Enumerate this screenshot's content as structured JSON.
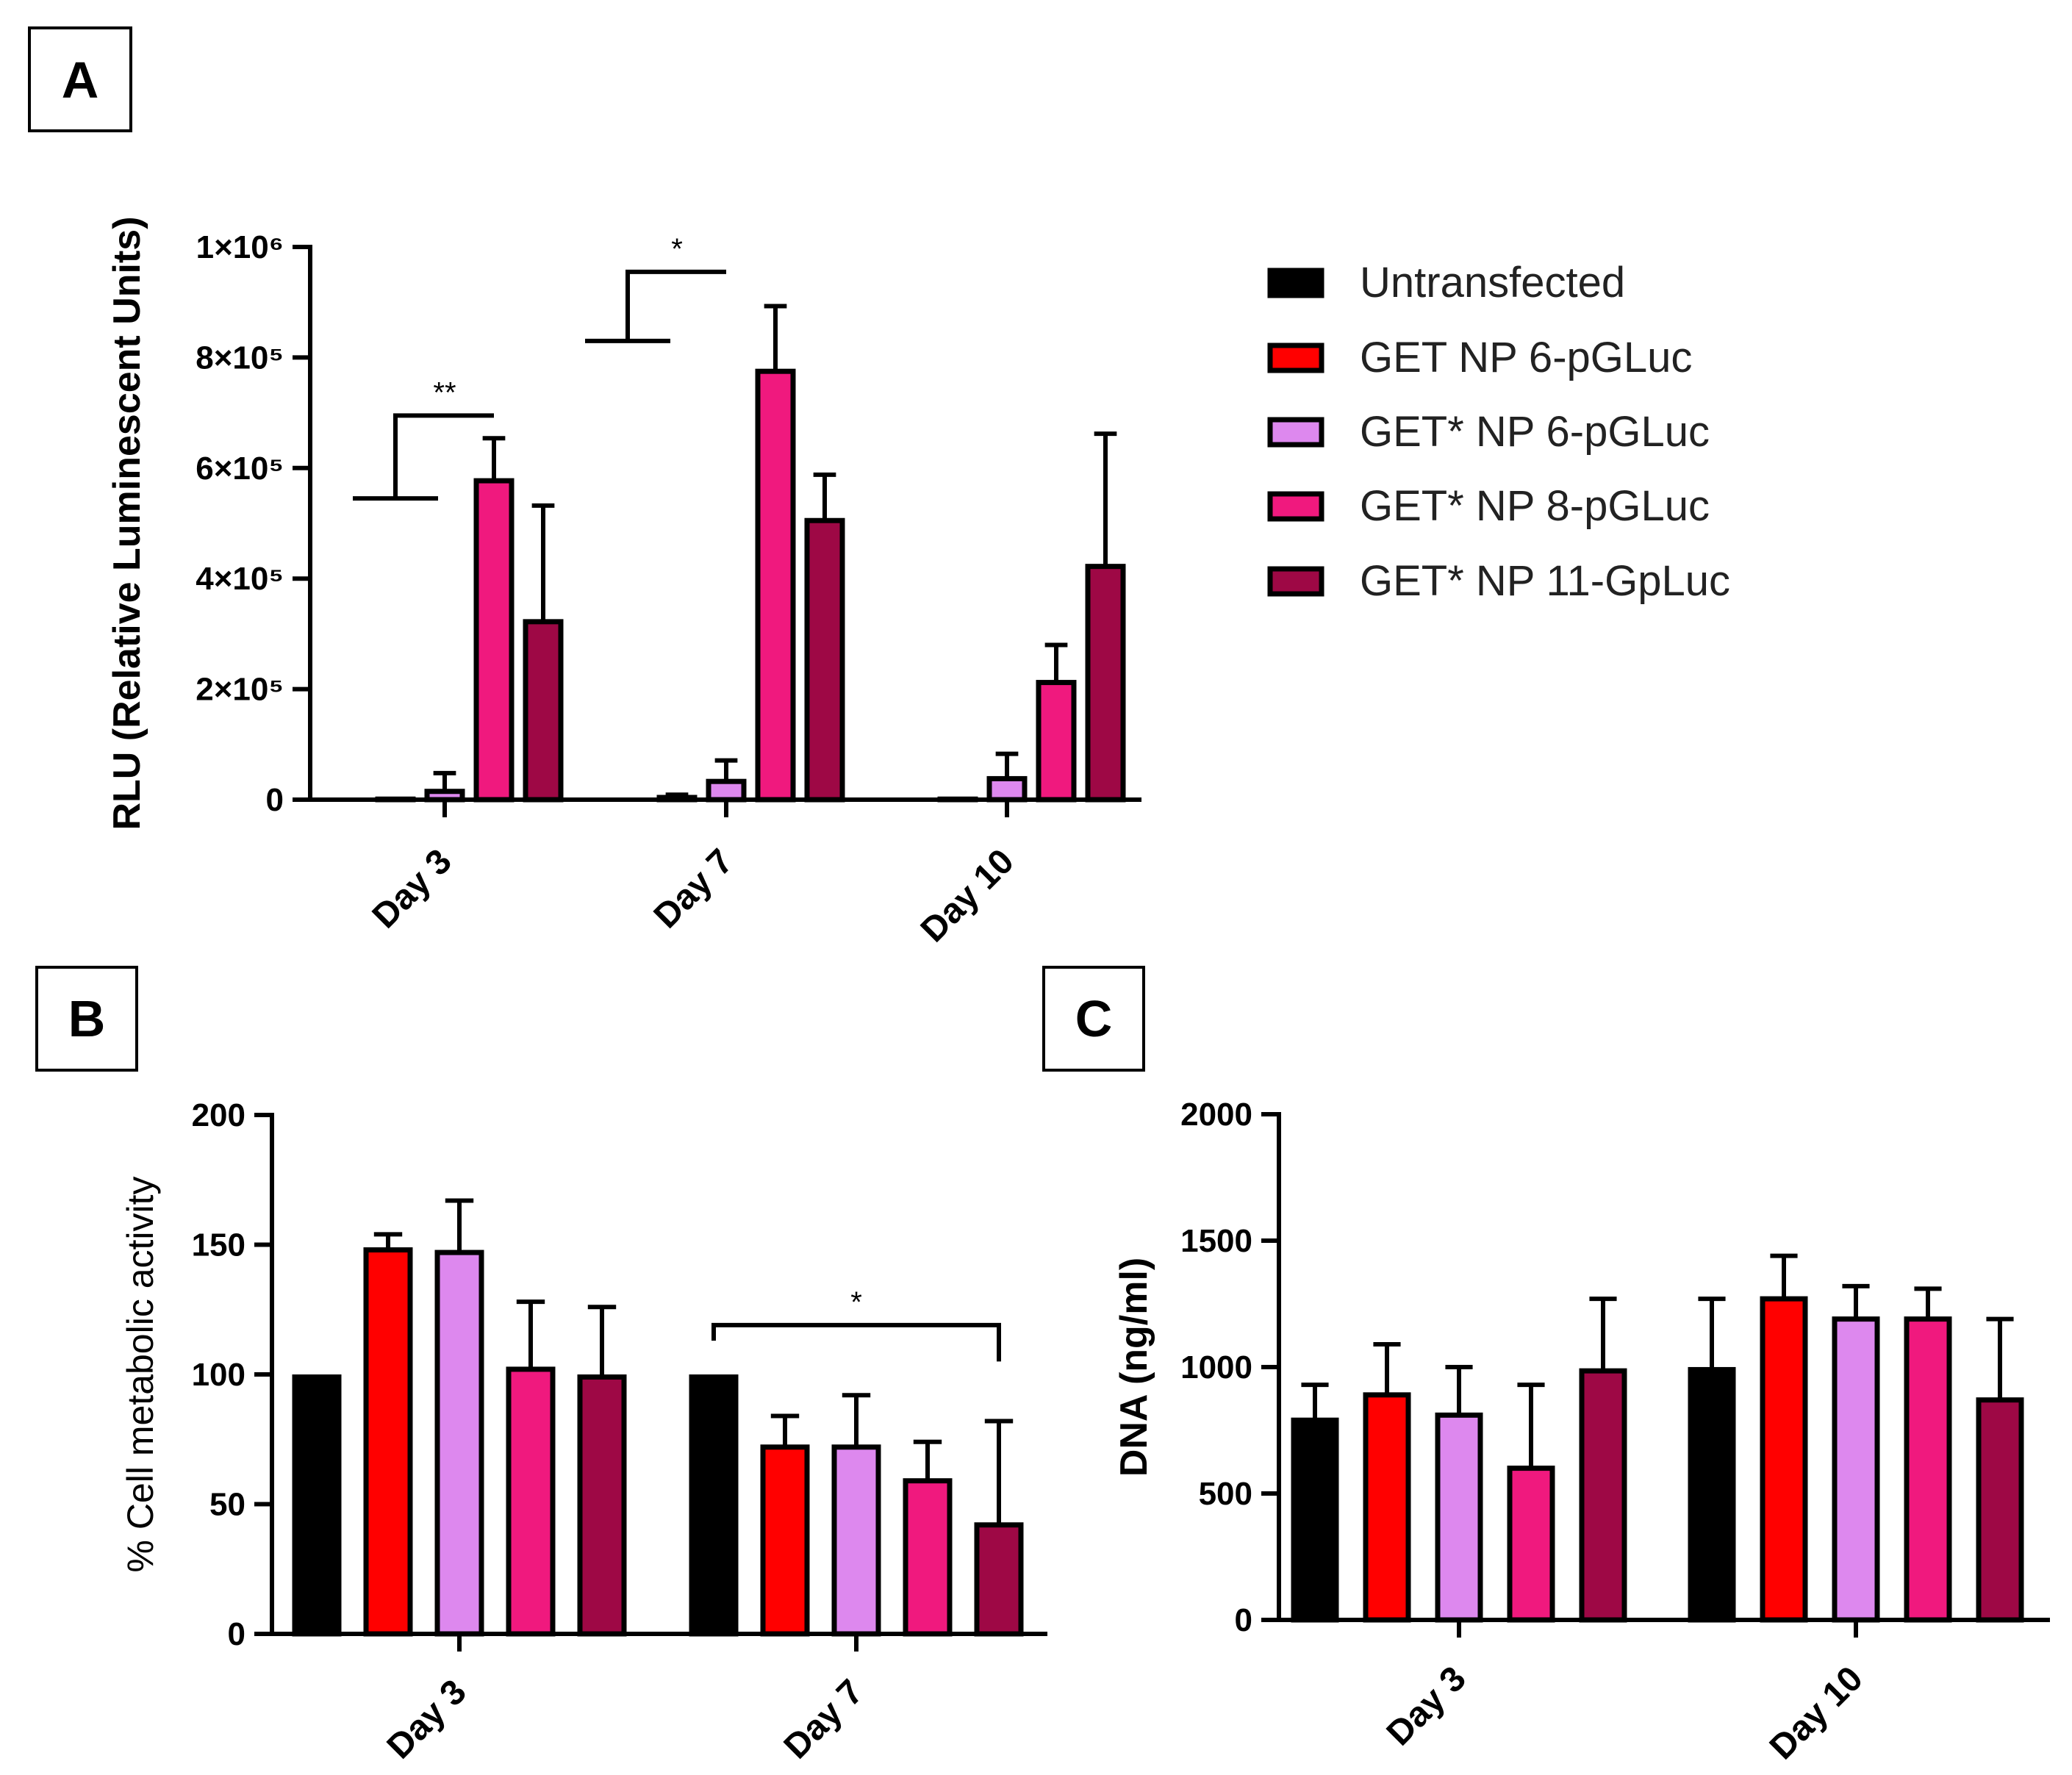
{
  "legend": [
    {
      "label": "Untransfected",
      "color": "#000000"
    },
    {
      "label": "GET NP 6-pGLuc",
      "color": "#ff0000"
    },
    {
      "label": "GET* NP 6-pGLuc",
      "color": "#dd88ee"
    },
    {
      "label": "GET* NP 8-pGLuc",
      "color": "#f0197e"
    },
    {
      "label": "GET* NP 11-GpLuc",
      "color": "#9e0845"
    }
  ],
  "chart_data": [
    {
      "panel": "A",
      "type": "bar",
      "ylabel": "RLU (Relative Luminescent Units)",
      "ylim": [
        0,
        1000000
      ],
      "yticks": [
        {
          "value": 0,
          "label": "0"
        },
        {
          "value": 200000,
          "label": "2×10⁵"
        },
        {
          "value": 400000,
          "label": "4×10⁵"
        },
        {
          "value": 600000,
          "label": "6×10⁵"
        },
        {
          "value": 800000,
          "label": "8×10⁵"
        },
        {
          "value": 1000000,
          "label": "1×10⁶"
        }
      ],
      "categories": [
        "Day 3",
        "Day 7",
        "Day 10"
      ],
      "series": [
        {
          "name": "Untransfected",
          "values": [
            0,
            0,
            0
          ],
          "errors": [
            0,
            0,
            0
          ]
        },
        {
          "name": "GET NP 6-pGLuc",
          "values": [
            1000,
            4000,
            1000
          ],
          "errors": [
            0,
            5000,
            0
          ]
        },
        {
          "name": "GET* NP 6-pGLuc",
          "values": [
            15000,
            33000,
            38000
          ],
          "errors": [
            33000,
            38000,
            45000
          ]
        },
        {
          "name": "GET* NP 8-pGLuc",
          "values": [
            577000,
            775000,
            212000
          ],
          "errors": [
            77000,
            118000,
            68000
          ]
        },
        {
          "name": "GET* NP 11-GpLuc",
          "values": [
            322000,
            505000,
            422000
          ],
          "errors": [
            210000,
            83000,
            240000
          ]
        }
      ],
      "significance": [
        {
          "label": "**",
          "category": "Day 3",
          "from_series": 1,
          "to_series": 3,
          "y": 695000,
          "left_drop": 150000,
          "right_drop": 0
        },
        {
          "label": "*",
          "category": "Day 7",
          "from_series": 0,
          "to_series": 2,
          "y": 955000,
          "left_drop": 125000,
          "right_drop": 0
        }
      ]
    },
    {
      "panel": "B",
      "type": "bar",
      "ylabel": "% Cell metabolic activity",
      "ylim": [
        0,
        200
      ],
      "yticks": [
        {
          "value": 0,
          "label": "0"
        },
        {
          "value": 50,
          "label": "50"
        },
        {
          "value": 100,
          "label": "100"
        },
        {
          "value": 150,
          "label": "150"
        },
        {
          "value": 200,
          "label": "200"
        }
      ],
      "categories": [
        "Day 3",
        "Day 7"
      ],
      "series": [
        {
          "name": "Untransfected",
          "values": [
            99,
            99
          ],
          "errors": [
            0,
            0
          ]
        },
        {
          "name": "GET NP 6-pGLuc",
          "values": [
            148,
            72
          ],
          "errors": [
            6,
            12
          ]
        },
        {
          "name": "GET* NP 6-pGLuc",
          "values": [
            147,
            72
          ],
          "errors": [
            20,
            20
          ]
        },
        {
          "name": "GET* NP 8-pGLuc",
          "values": [
            102,
            59
          ],
          "errors": [
            26,
            15
          ]
        },
        {
          "name": "GET* NP 11-GpLuc",
          "values": [
            99,
            42
          ],
          "errors": [
            27,
            40
          ]
        }
      ],
      "significance": [
        {
          "label": "*",
          "category": "Day 7",
          "from_series": 0,
          "to_series": 4,
          "y": 119,
          "left_drop": 6,
          "right_drop": 14
        }
      ]
    },
    {
      "panel": "C",
      "type": "bar",
      "ylabel": "DNA (ng/ml)",
      "ylim": [
        0,
        2000
      ],
      "yticks": [
        {
          "value": 0,
          "label": "0"
        },
        {
          "value": 500,
          "label": "500"
        },
        {
          "value": 1000,
          "label": "1000"
        },
        {
          "value": 1500,
          "label": "1500"
        },
        {
          "value": 2000,
          "label": "2000"
        }
      ],
      "categories": [
        "Day 3",
        "Day 10"
      ],
      "series": [
        {
          "name": "Untransfected",
          "values": [
            790,
            990
          ],
          "errors": [
            140,
            280
          ]
        },
        {
          "name": "GET NP 6-pGLuc",
          "values": [
            890,
            1270
          ],
          "errors": [
            200,
            170
          ]
        },
        {
          "name": "GET* NP 6-pGLuc",
          "values": [
            810,
            1190
          ],
          "errors": [
            190,
            130
          ]
        },
        {
          "name": "GET* NP 8-pGLuc",
          "values": [
            600,
            1190
          ],
          "errors": [
            330,
            120
          ]
        },
        {
          "name": "GET* NP 11-GpLuc",
          "values": [
            985,
            870
          ],
          "errors": [
            285,
            320
          ]
        }
      ],
      "significance": []
    }
  ],
  "panel_labels": [
    "A",
    "B",
    "C"
  ]
}
